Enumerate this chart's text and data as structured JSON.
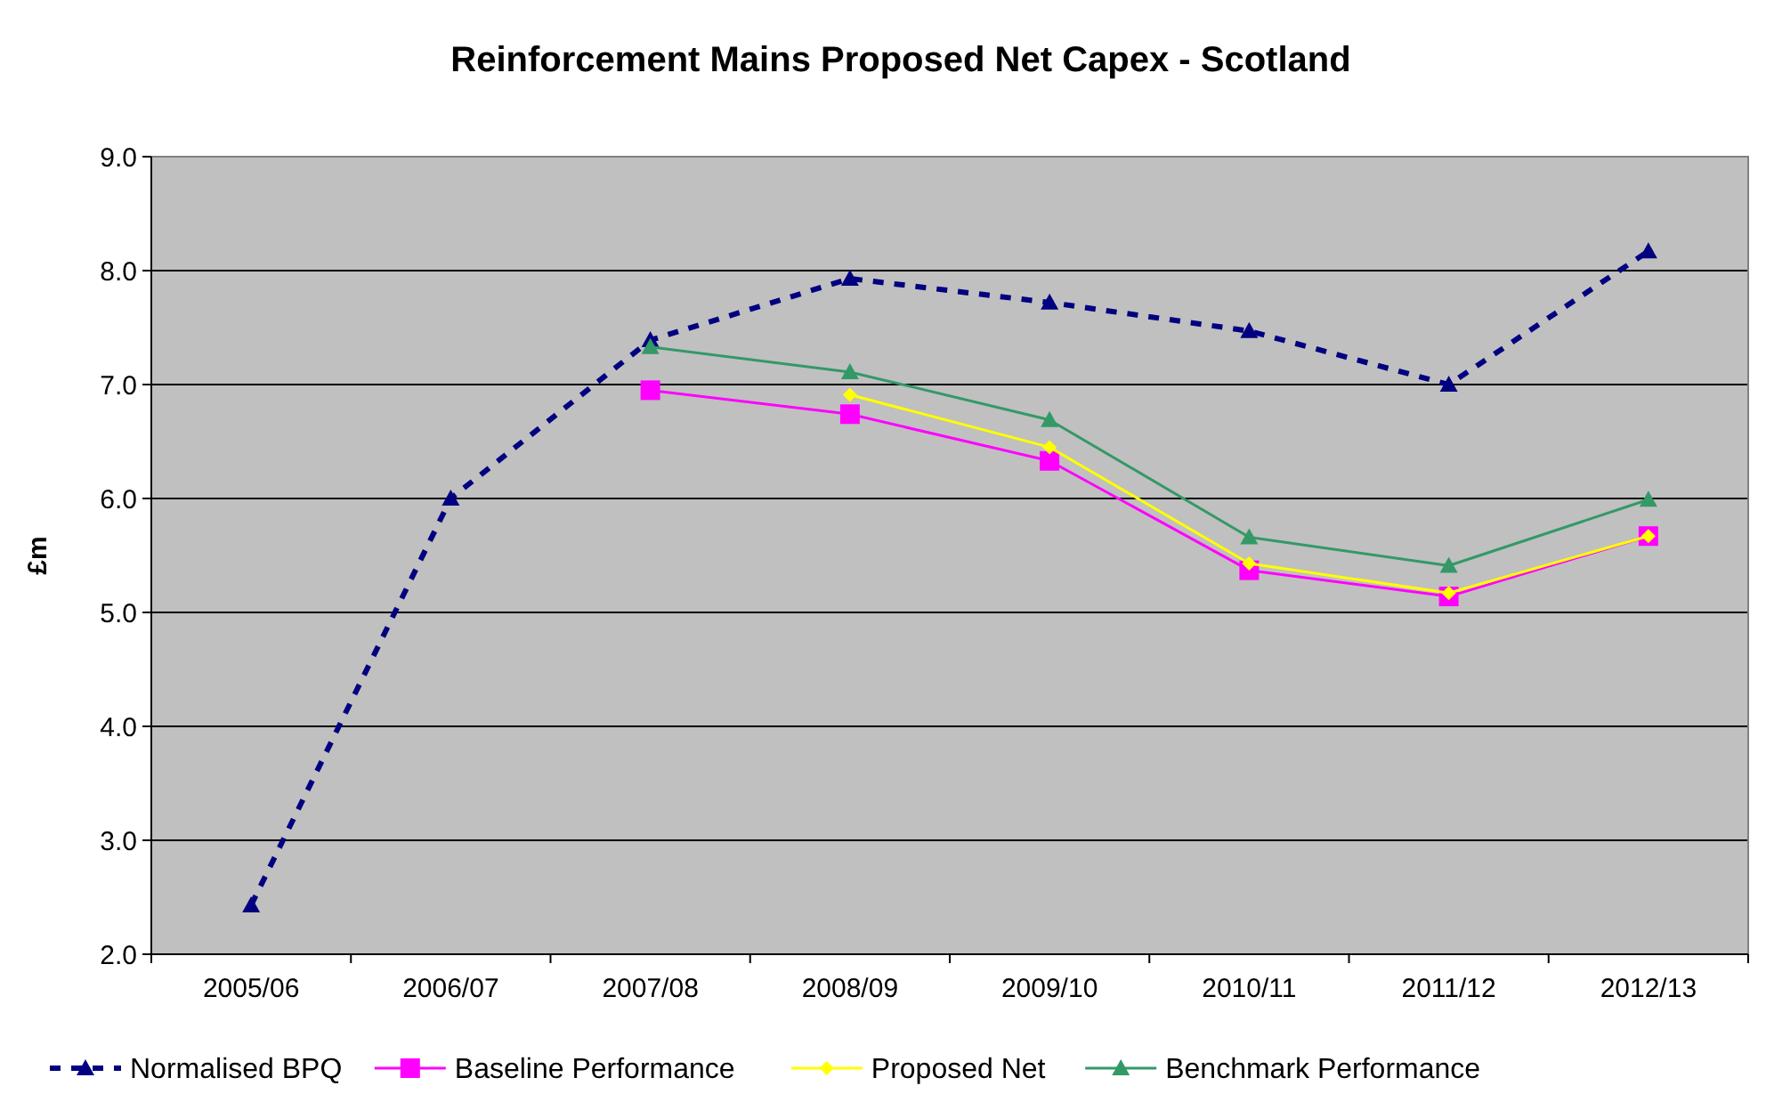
{
  "chart_data": {
    "type": "line",
    "title": "Reinforcement Mains Proposed Net Capex - Scotland",
    "ylabel": "£m",
    "categories": [
      "2005/06",
      "2006/07",
      "2007/08",
      "2008/09",
      "2009/10",
      "2010/11",
      "2011/12",
      "2012/13"
    ],
    "ylim": [
      2,
      9
    ],
    "yticks": [
      {
        "value": 2,
        "label": "2.0"
      },
      {
        "value": 3,
        "label": "3.0"
      },
      {
        "value": 4,
        "label": "4.0"
      },
      {
        "value": 5,
        "label": "5.0"
      },
      {
        "value": 6,
        "label": "6.0"
      },
      {
        "value": 7,
        "label": "7.0"
      },
      {
        "value": 8,
        "label": "8.0"
      },
      {
        "value": 9,
        "label": "9.0"
      }
    ],
    "grid": "y",
    "legend": "bottom",
    "series": [
      {
        "name": "Normalised BPQ",
        "color": "#000080",
        "marker": "triangle",
        "line_style": "dashed",
        "values": [
          2.43,
          6.0,
          7.39,
          7.93,
          7.72,
          7.47,
          7.0,
          8.17
        ]
      },
      {
        "name": "Baseline Performance",
        "color": "#ff00ff",
        "marker": "square",
        "line_style": "solid",
        "values": [
          null,
          null,
          6.95,
          6.74,
          6.33,
          5.37,
          5.14,
          5.67
        ]
      },
      {
        "name": "Proposed Net",
        "color": "#ffff00",
        "marker": "diamond",
        "line_style": "solid",
        "values": [
          null,
          null,
          null,
          6.91,
          6.45,
          5.43,
          5.17,
          5.67
        ]
      },
      {
        "name": "Benchmark Performance",
        "color": "#339966",
        "marker": "triangle",
        "line_style": "solid",
        "values": [
          null,
          null,
          7.33,
          7.11,
          6.69,
          5.66,
          5.41,
          5.99
        ]
      }
    ]
  }
}
